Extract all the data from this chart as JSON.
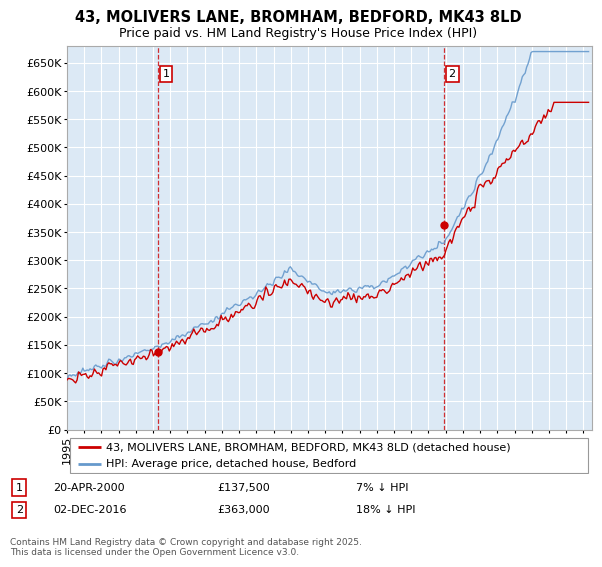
{
  "title_line1": "43, MOLIVERS LANE, BROMHAM, BEDFORD, MK43 8LD",
  "title_line2": "Price paid vs. HM Land Registry's House Price Index (HPI)",
  "ylabel_ticks": [
    "£0",
    "£50K",
    "£100K",
    "£150K",
    "£200K",
    "£250K",
    "£300K",
    "£350K",
    "£400K",
    "£450K",
    "£500K",
    "£550K",
    "£600K",
    "£650K"
  ],
  "ytick_values": [
    0,
    50000,
    100000,
    150000,
    200000,
    250000,
    300000,
    350000,
    400000,
    450000,
    500000,
    550000,
    600000,
    650000
  ],
  "ylim": [
    0,
    680000
  ],
  "xlim_start": 1995.0,
  "xlim_end": 2025.5,
  "red_line_color": "#cc0000",
  "blue_line_color": "#6699cc",
  "sale1_x": 2000.31,
  "sale1_y": 137500,
  "sale2_x": 2016.92,
  "sale2_y": 363000,
  "vline_color": "#cc0000",
  "background_color": "#ffffff",
  "plot_bg_color": "#dce9f5",
  "grid_color": "#ffffff",
  "legend_entry1": "43, MOLIVERS LANE, BROMHAM, BEDFORD, MK43 8LD (detached house)",
  "legend_entry2": "HPI: Average price, detached house, Bedford",
  "note1_label": "1",
  "note1_date": "20-APR-2000",
  "note1_price": "£137,500",
  "note1_pct": "7% ↓ HPI",
  "note2_label": "2",
  "note2_date": "02-DEC-2016",
  "note2_price": "£363,000",
  "note2_pct": "18% ↓ HPI",
  "footer": "Contains HM Land Registry data © Crown copyright and database right 2025.\nThis data is licensed under the Open Government Licence v3.0.",
  "title_fontsize": 10.5,
  "subtitle_fontsize": 9,
  "tick_fontsize": 8,
  "legend_fontsize": 8,
  "note_fontsize": 8,
  "footer_fontsize": 6.5
}
